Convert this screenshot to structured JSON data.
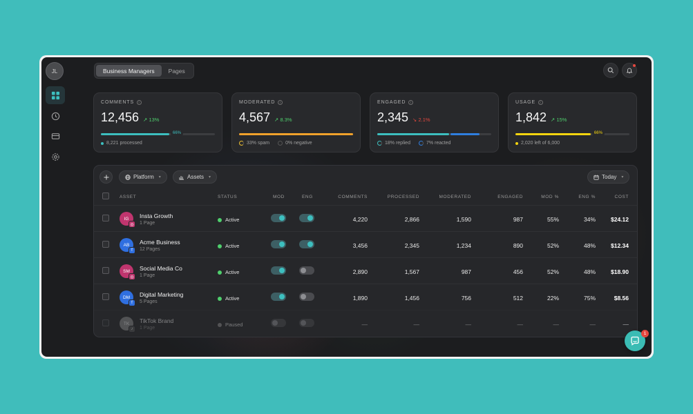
{
  "sidebar": {
    "avatar_initials": "JL",
    "items": [
      {
        "icon": "dashboard-grid-icon",
        "active": true
      },
      {
        "icon": "clock-icon",
        "active": false
      },
      {
        "icon": "wallet-icon",
        "active": false
      },
      {
        "icon": "gear-icon",
        "active": false
      }
    ]
  },
  "header": {
    "tabs": [
      {
        "label": "Business Managers",
        "active": true
      },
      {
        "label": "Pages",
        "active": false
      }
    ],
    "icons": [
      "search-icon",
      "bell-icon"
    ]
  },
  "cards": [
    {
      "label": "COMMENTS",
      "value": "12,456",
      "delta": "13%",
      "direction": "up",
      "bar_color": "#3dbfbf",
      "bar_fraction": 0.6,
      "badge": "66%",
      "foot": [
        {
          "text": "8,221 processed",
          "marker": "dot",
          "color": "#3dbfbf"
        }
      ]
    },
    {
      "label": "MODERATED",
      "value": "4,567",
      "delta": "8.3%",
      "direction": "up",
      "bar_color": "#f0a12b",
      "bar_fraction": 1.0,
      "badge": "",
      "foot": [
        {
          "text": "33% spam",
          "marker": "ring",
          "color": "#f0c030"
        },
        {
          "text": "0% negative",
          "marker": "ring",
          "color": "#555555"
        }
      ]
    },
    {
      "label": "ENGAGED",
      "value": "2,345",
      "delta": "2.1%",
      "direction": "down",
      "bar_color": "#3dbfbf",
      "bar_fraction": 0.63,
      "bar2_color": "#2f7fe0",
      "bar2_fraction": 0.26,
      "badge": "",
      "foot": [
        {
          "text": "18% replied",
          "marker": "ring",
          "color": "#3dbfbf"
        },
        {
          "text": "7% reacted",
          "marker": "ring",
          "color": "#2f7fe0"
        }
      ]
    },
    {
      "label": "USAGE",
      "value": "1,842",
      "delta": "15%",
      "direction": "up",
      "bar_color": "#f5d40f",
      "bar_fraction": 0.66,
      "badge": "66%",
      "foot": [
        {
          "text": "2,020 left of 6,000",
          "marker": "dot",
          "color": "#f5d40f"
        }
      ]
    }
  ],
  "toolbar": {
    "platform_label": "Platform",
    "assets_label": "Assets",
    "date_label": "Today"
  },
  "table": {
    "columns": [
      "ASSET",
      "STATUS",
      "MOD",
      "ENG",
      "COMMENTS",
      "PROCESSED",
      "MODERATED",
      "ENGAGED",
      "MOD %",
      "ENG %",
      "COST"
    ],
    "rows": [
      {
        "initials": "IG",
        "name": "Insta Growth",
        "sub": "1 Page",
        "avatar_color": "#c0356e",
        "platform": "instagram",
        "badge_color": "#c0356e",
        "badge_glyph": "◎",
        "status": "Active",
        "status_color": "#4fcf6d",
        "mod": true,
        "eng": true,
        "comments": "4,220",
        "processed": "2,866",
        "moderated": "1,590",
        "engaged": "987",
        "mod_pct": "55%",
        "eng_pct": "34%",
        "cost": "$24.12",
        "dim": false
      },
      {
        "initials": "AB",
        "name": "Acme Business",
        "sub": "12 Pages",
        "avatar_color": "#2f6fe0",
        "platform": "facebook",
        "badge_color": "#2f6fe0",
        "badge_glyph": "f",
        "status": "Active",
        "status_color": "#4fcf6d",
        "mod": true,
        "eng": true,
        "comments": "3,456",
        "processed": "2,345",
        "moderated": "1,234",
        "engaged": "890",
        "mod_pct": "52%",
        "eng_pct": "48%",
        "cost": "$12.34",
        "dim": false
      },
      {
        "initials": "SM",
        "name": "Social Media Co",
        "sub": "1 Page",
        "avatar_color": "#c0356e",
        "platform": "instagram",
        "badge_color": "#c0356e",
        "badge_glyph": "◎",
        "status": "Active",
        "status_color": "#4fcf6d",
        "mod": true,
        "eng": false,
        "comments": "2,890",
        "processed": "1,567",
        "moderated": "987",
        "engaged": "456",
        "mod_pct": "52%",
        "eng_pct": "48%",
        "cost": "$18.90",
        "dim": false
      },
      {
        "initials": "DM",
        "name": "Digital Marketing",
        "sub": "5 Pages",
        "avatar_color": "#2f6fe0",
        "platform": "facebook",
        "badge_color": "#2f6fe0",
        "badge_glyph": "f",
        "status": "Active",
        "status_color": "#4fcf6d",
        "mod": true,
        "eng": false,
        "comments": "1,890",
        "processed": "1,456",
        "moderated": "756",
        "engaged": "512",
        "mod_pct": "22%",
        "eng_pct": "75%",
        "cost": "$8.56",
        "dim": false
      },
      {
        "initials": "TK",
        "name": "TikTok Brand",
        "sub": "1 Page",
        "avatar_color": "#8a8a8a",
        "platform": "tiktok",
        "badge_color": "#555555",
        "badge_glyph": "♪",
        "status": "Paused",
        "status_color": "#8a8a8a",
        "mod": false,
        "eng": false,
        "comments": "—",
        "processed": "—",
        "moderated": "—",
        "engaged": "—",
        "mod_pct": "—",
        "eng_pct": "—",
        "cost": "—",
        "dim": true
      }
    ]
  },
  "chat": {
    "badge_count": "1"
  }
}
